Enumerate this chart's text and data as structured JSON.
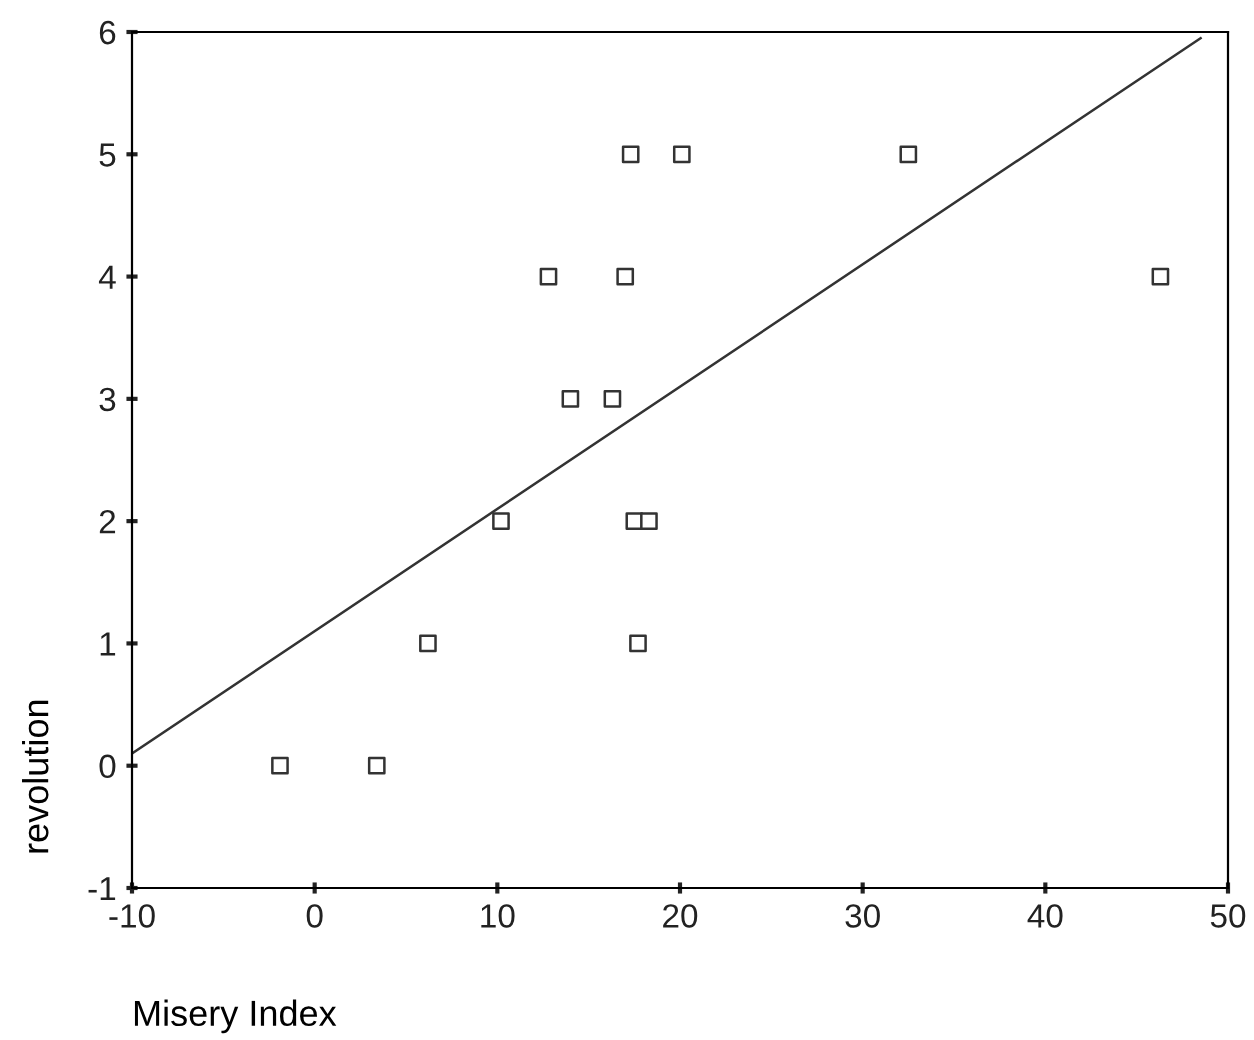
{
  "chart_data": {
    "type": "scatter",
    "xlabel": "Misery Index",
    "ylabel": "revolution",
    "xlim": [
      -10,
      50
    ],
    "ylim": [
      -1,
      6
    ],
    "xticks": [
      -10,
      0,
      10,
      20,
      30,
      40,
      50
    ],
    "yticks": [
      -1,
      0,
      1,
      2,
      3,
      4,
      5,
      6
    ],
    "grid": false,
    "legend": false,
    "marker": "square",
    "series": [
      {
        "color": "#333333",
        "x": [
          -1.9,
          3.4,
          6.2,
          10.2,
          12.8,
          14.0,
          16.3,
          17.0,
          17.3,
          20.1,
          17.5,
          18.3,
          17.7,
          32.5,
          46.3
        ],
        "values": [
          0,
          0,
          1,
          2,
          4,
          3,
          3,
          4,
          5,
          5,
          2,
          2,
          1,
          5,
          4
        ]
      },
      {
        "type": "line",
        "color": "#333333",
        "marker": "none",
        "line_style": "solid",
        "x": [
          -10,
          48.5
        ],
        "values": [
          0.1,
          5.95
        ]
      }
    ]
  }
}
